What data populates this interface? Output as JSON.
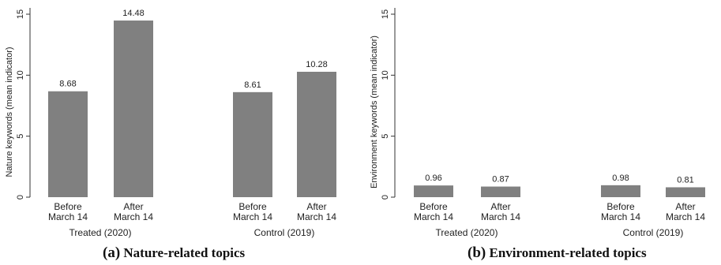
{
  "chart_data": [
    {
      "type": "bar",
      "title": "",
      "caption_letter": "(a)",
      "caption_text": "Nature-related topics",
      "xlabel": "",
      "ylabel": "Nature keywords (mean indicator)",
      "ylim": [
        0,
        15
      ],
      "yticks": [
        "0",
        "5",
        "10",
        "15"
      ],
      "grid": false,
      "bar_color": "#808080",
      "groups": [
        "Treated (2020)",
        "Control (2019)"
      ],
      "categories": [
        [
          "Before",
          "March 14"
        ],
        [
          "After",
          "March 14"
        ],
        [
          "Before",
          "March 14"
        ],
        [
          "After",
          "March 14"
        ]
      ],
      "values": [
        8.68,
        14.48,
        8.61,
        10.28
      ],
      "labels": [
        "8.68",
        "14.48",
        "8.61",
        "10.28"
      ]
    },
    {
      "type": "bar",
      "title": "",
      "caption_letter": "(b)",
      "caption_text": "Environment-related topics",
      "xlabel": "",
      "ylabel": "Environment keywords (mean indicator)",
      "ylim": [
        0,
        15
      ],
      "yticks": [
        "0",
        "5",
        "10",
        "15"
      ],
      "grid": false,
      "bar_color": "#808080",
      "groups": [
        "Treated (2020)",
        "Control (2019)"
      ],
      "categories": [
        [
          "Before",
          "March 14"
        ],
        [
          "After",
          "March 14"
        ],
        [
          "Before",
          "March 14"
        ],
        [
          "After",
          "March 14"
        ]
      ],
      "values": [
        0.96,
        0.87,
        0.98,
        0.81
      ],
      "labels": [
        "0.96",
        "0.87",
        "0.98",
        "0.81"
      ]
    }
  ]
}
